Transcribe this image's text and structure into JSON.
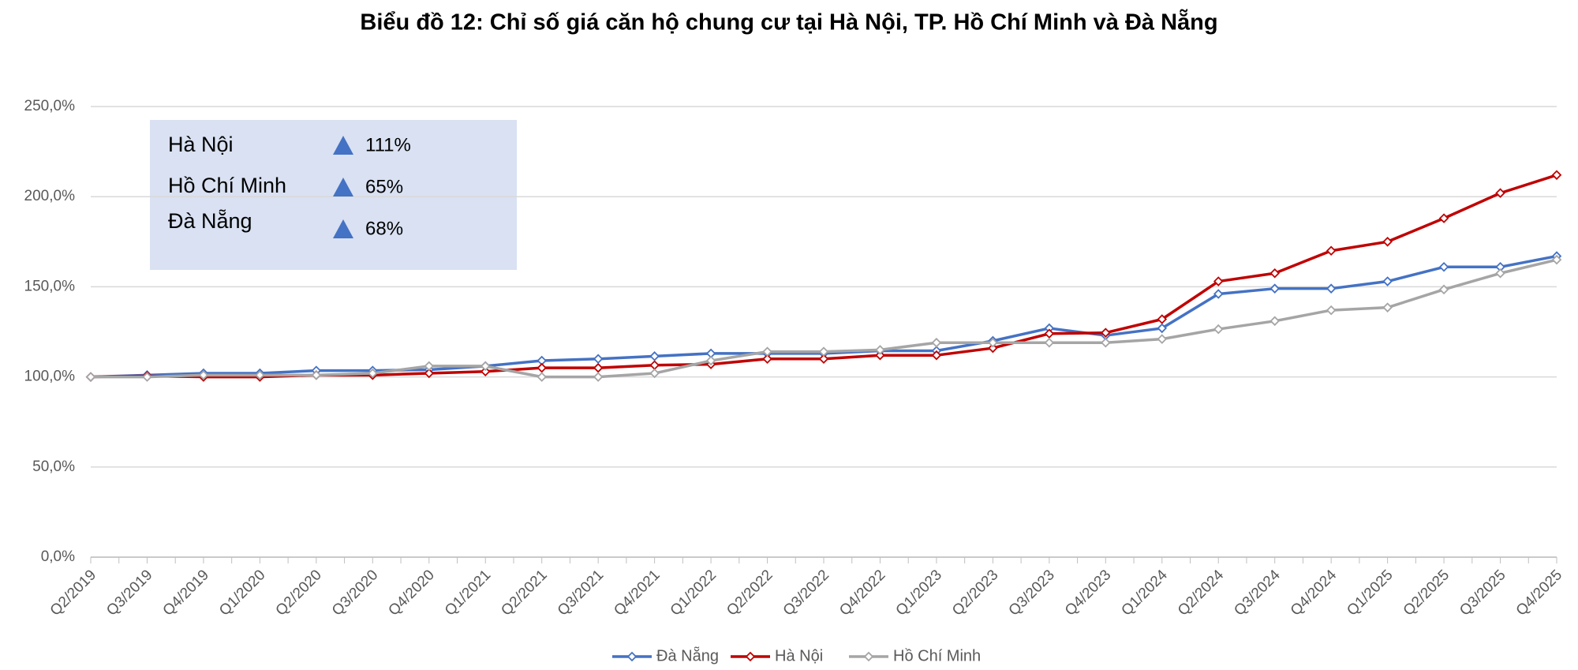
{
  "chart_data": {
    "type": "line",
    "title": "Biểu đồ 12: Chỉ số giá căn hộ chung cư tại  Hà Nội, TP. Hồ Chí Minh và Đà Nẵng",
    "categories": [
      "Q2/2019",
      "Q3/2019",
      "Q4/2019",
      "Q1/2020",
      "Q2/2020",
      "Q3/2020",
      "Q4/2020",
      "Q1/2021",
      "Q2/2021",
      "Q3/2021",
      "Q4/2021",
      "Q1/2022",
      "Q2/2022",
      "Q3/2022",
      "Q4/2022",
      "Q1/2023",
      "Q2/2023",
      "Q3/2023",
      "Q4/2023",
      "Q1/2024",
      "Q2/2024",
      "Q3/2024",
      "Q4/2024",
      "Q1/2025",
      "Q2/2025",
      "Q3/2025",
      "Q4/2025"
    ],
    "series": [
      {
        "name": "Đà Nẵng",
        "color": "#4472c4",
        "values": [
          100,
          101,
          102,
          102,
          103.5,
          103.5,
          104,
          106,
          109,
          110,
          111.5,
          113,
          113,
          113,
          114.5,
          114.5,
          120,
          127,
          123,
          127,
          146,
          149,
          149,
          153,
          161,
          161,
          167
        ]
      },
      {
        "name": "Hà Nội",
        "color": "#c00000",
        "values": [
          100,
          100.5,
          100,
          100,
          101,
          101,
          102,
          103,
          105,
          105,
          106.5,
          107,
          110,
          110,
          112,
          112,
          116,
          124,
          124.5,
          132,
          153,
          157.5,
          170,
          175,
          188,
          202,
          212
        ]
      },
      {
        "name": "Hồ Chí Minh",
        "color": "#a5a5a5",
        "values": [
          100,
          100,
          101,
          101,
          101,
          102,
          106,
          106,
          100,
          100,
          102,
          109,
          114,
          114,
          115,
          119,
          119,
          119,
          119,
          121,
          126.5,
          131,
          137,
          138.5,
          148.5,
          157.5,
          165
        ]
      }
    ],
    "ylim": [
      0,
      250
    ],
    "yticks": [
      {
        "value": 0,
        "label": "0,0%"
      },
      {
        "value": 50,
        "label": "50,0%"
      },
      {
        "value": 100,
        "label": "100,0%"
      },
      {
        "value": 150,
        "label": "150,0%"
      },
      {
        "value": 200,
        "label": "200,0%"
      },
      {
        "value": 250,
        "label": "250,0%"
      }
    ],
    "grid": true,
    "annotations": [
      {
        "label": "Hà Nội",
        "change": "111%"
      },
      {
        "label": "Hồ Chí Minh",
        "change": "65%"
      },
      {
        "label": "Đà Nẵng",
        "change": "68%"
      }
    ]
  }
}
